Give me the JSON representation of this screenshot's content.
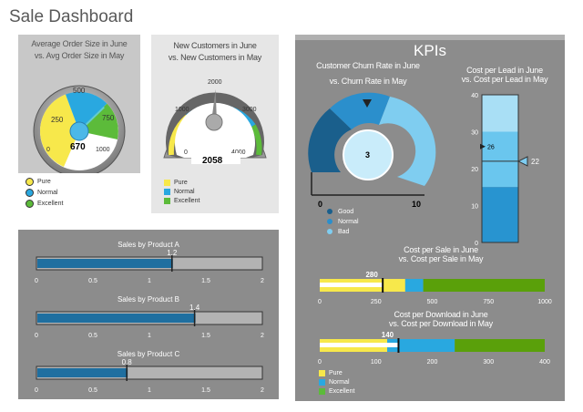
{
  "title": "Sale Dashboard",
  "gauge_order": {
    "title_line1": "Average Order Size in June",
    "title_line2": "vs. Avg Order Size in May",
    "ticks": [
      "0",
      "250",
      "500",
      "750",
      "1000"
    ],
    "value": "670",
    "value_num": 670,
    "min": 0,
    "max": 1000
  },
  "legend_order": [
    {
      "label": "Pure",
      "color": "#f7e84b"
    },
    {
      "label": "Normal",
      "color": "#29a8e0"
    },
    {
      "label": "Excellent",
      "color": "#5cbb3a"
    }
  ],
  "gauge_customers": {
    "title_line1": "New Customers in June",
    "title_line2": "vs. New Customers in May",
    "ticks": [
      "0",
      "1000",
      "2000",
      "3000",
      "4000"
    ],
    "value": "2058",
    "value_num": 2058,
    "min": 0,
    "max": 4000
  },
  "legend_customers": [
    {
      "label": "Pure",
      "color": "#f7e84b"
    },
    {
      "label": "Normal",
      "color": "#29a8e0"
    },
    {
      "label": "Excellent",
      "color": "#5cbb3a"
    }
  ],
  "products": {
    "ticks": [
      "0",
      "0.5",
      "1",
      "1.5",
      "2"
    ],
    "max": 2,
    "items": [
      {
        "title": "Sales by Product A",
        "value": "1.2",
        "value_num": 1.2
      },
      {
        "title": "Sales by Product B",
        "value": "1.4",
        "value_num": 1.4
      },
      {
        "title": "Sales by Product C",
        "value": "0.8",
        "value_num": 0.8
      }
    ]
  },
  "kpis": {
    "title": "KPIs",
    "churn": {
      "title_line1": "Customer Churn Rate in June",
      "title_line2": "vs. Churn Rate in May",
      "value": "3",
      "value_num": 3,
      "min_label": "0",
      "max_label": "10",
      "legend": [
        {
          "label": "Good",
          "color": "#1a5f8c"
        },
        {
          "label": "Normal",
          "color": "#2b8fcc"
        },
        {
          "label": "Bad",
          "color": "#7fcdf0"
        }
      ]
    },
    "cost_lead": {
      "title_line1": "Cost per Lead in June",
      "title_line2": "vs. Cost per Lead in May",
      "ticks": [
        "0",
        "10",
        "20",
        "30",
        "40"
      ],
      "value": "26",
      "value_num": 26,
      "marker": "22",
      "marker_num": 22,
      "max": 40
    },
    "cost_sale": {
      "title_line1": "Cost per Sale in June",
      "title_line2": "vs. Cost per Sale in May",
      "ticks": [
        "0",
        "250",
        "500",
        "750",
        "1000"
      ],
      "value": "280",
      "value_num": 280,
      "max": 1000
    },
    "cost_download": {
      "title_line1": "Cost per Download in June",
      "title_line2": "vs. Cost per Download in May",
      "ticks": [
        "0",
        "100",
        "200",
        "300",
        "400"
      ],
      "value": "140",
      "value_num": 140,
      "max": 400
    },
    "legend": [
      {
        "label": "Pure",
        "color": "#f7e84b"
      },
      {
        "label": "Normal",
        "color": "#29a8e0"
      },
      {
        "label": "Excellent",
        "color": "#5cbb3a"
      }
    ]
  }
}
